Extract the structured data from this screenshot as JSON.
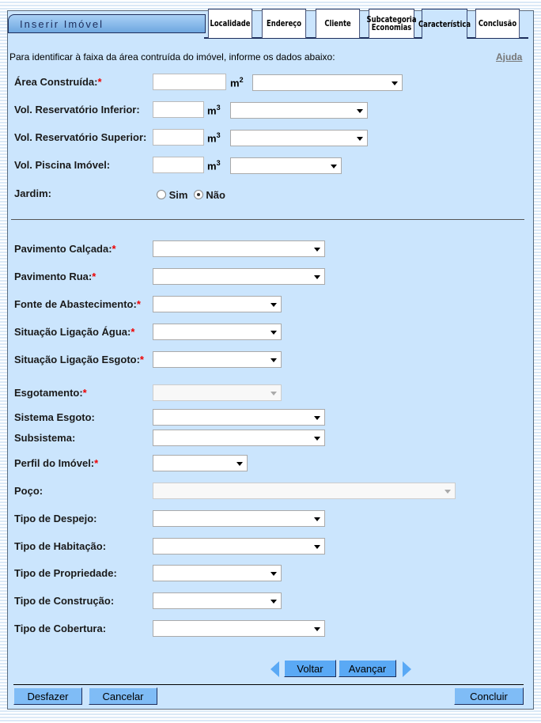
{
  "title": "Inserir Imóvel",
  "tabs": [
    "Localidade",
    "Endereço",
    "Cliente",
    "Subcategoria Economias",
    "Característica",
    "Conclusão"
  ],
  "active_tab": "Característica",
  "intro": "Para identificar à faixa da área contruída do imóvel, informe os dados abaixo:",
  "help": "Ajuda",
  "units": {
    "m2": "m",
    "m3": "m",
    "sq": "2",
    "cu": "3"
  },
  "fields": {
    "area": "Área Construída:",
    "res_inf": "Vol. Reservatório Inferior:",
    "res_sup": "Vol. Reservatório Superior:",
    "piscina": "Vol. Piscina Imóvel:",
    "jardim": "Jardim:",
    "sim": "Sim",
    "nao": "Não",
    "pav_calcada": "Pavimento Calçada:",
    "pav_rua": "Pavimento Rua:",
    "fonte": "Fonte de Abastecimento:",
    "sit_agua": "Situação Ligação Água:",
    "sit_esgoto": "Situação Ligação Esgoto:",
    "esgotamento": "Esgotamento:",
    "sistema": "Sistema Esgoto:",
    "subsistema": "Subsistema:",
    "perfil": "Perfil do Imóvel:",
    "poco": "Poço:",
    "despejo": "Tipo de Despejo:",
    "habitacao": "Tipo de Habitação:",
    "propriedade": "Tipo de Propriedade:",
    "construcao": "Tipo de Construção:",
    "cobertura": "Tipo de Cobertura:"
  },
  "jardim_selected": "Não",
  "required_mark": "*",
  "buttons": {
    "voltar": "Voltar",
    "avancar": "Avançar",
    "desfazer": "Desfazer",
    "cancelar": "Cancelar",
    "concluir": "Concluir"
  }
}
